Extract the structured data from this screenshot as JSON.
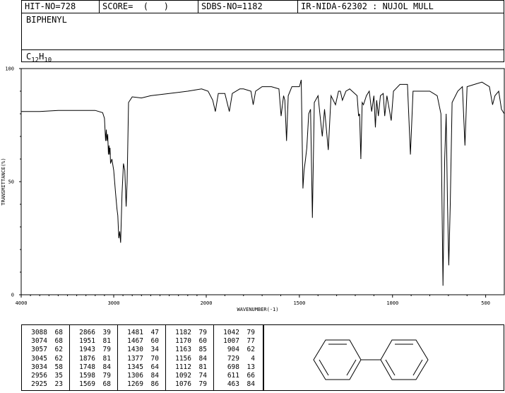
{
  "header": {
    "hit_no": "HIT-NO=728",
    "score": "SCORE=  (   )",
    "sdbs_no": "SDBS-NO=1182",
    "ir_id": "IR-NIDA-62302 : NUJOL MULL",
    "compound_name": "BIPHENYL",
    "formula": {
      "c": "C",
      "c_count": "12",
      "h": "H",
      "h_count": "10"
    }
  },
  "chart_data": {
    "type": "line",
    "xlabel": "WAVENUMBER(-1)",
    "ylabel": "TRANSMITTANCE(%)",
    "xlim": [
      4000,
      400
    ],
    "ylim": [
      0,
      100
    ],
    "x_ticks": [
      "4000",
      "3000",
      "2000",
      "1500",
      "1000",
      "500"
    ],
    "y_ticks": [
      "0",
      "50",
      "100"
    ],
    "series": [
      {
        "points": [
          [
            4000,
            81
          ],
          [
            3800,
            81
          ],
          [
            3600,
            81.5
          ],
          [
            3400,
            81.5
          ],
          [
            3200,
            81.5
          ],
          [
            3120,
            80.5
          ],
          [
            3100,
            78
          ],
          [
            3088,
            68
          ],
          [
            3080,
            73
          ],
          [
            3074,
            68
          ],
          [
            3065,
            71
          ],
          [
            3057,
            62
          ],
          [
            3050,
            66
          ],
          [
            3045,
            62
          ],
          [
            3040,
            65
          ],
          [
            3034,
            58
          ],
          [
            3020,
            60
          ],
          [
            3000,
            55
          ],
          [
            2980,
            45
          ],
          [
            2965,
            38
          ],
          [
            2956,
            35
          ],
          [
            2945,
            25
          ],
          [
            2935,
            28
          ],
          [
            2925,
            23
          ],
          [
            2910,
            45
          ],
          [
            2895,
            58
          ],
          [
            2880,
            55
          ],
          [
            2866,
            39
          ],
          [
            2855,
            50
          ],
          [
            2840,
            85
          ],
          [
            2800,
            87.5
          ],
          [
            2700,
            87
          ],
          [
            2600,
            88
          ],
          [
            2400,
            89
          ],
          [
            2200,
            90
          ],
          [
            2050,
            91
          ],
          [
            1990,
            90
          ],
          [
            1965,
            86
          ],
          [
            1951,
            81
          ],
          [
            1935,
            89
          ],
          [
            1900,
            89
          ],
          [
            1876,
            81
          ],
          [
            1860,
            89
          ],
          [
            1820,
            91
          ],
          [
            1800,
            91
          ],
          [
            1760,
            90
          ],
          [
            1748,
            84
          ],
          [
            1735,
            90
          ],
          [
            1700,
            92
          ],
          [
            1650,
            92
          ],
          [
            1610,
            91
          ],
          [
            1598,
            79
          ],
          [
            1585,
            88
          ],
          [
            1578,
            86
          ],
          [
            1569,
            68
          ],
          [
            1560,
            88
          ],
          [
            1540,
            92
          ],
          [
            1520,
            92
          ],
          [
            1500,
            92
          ],
          [
            1490,
            95
          ],
          [
            1481,
            47
          ],
          [
            1475,
            55
          ],
          [
            1467,
            60
          ],
          [
            1460,
            65
          ],
          [
            1450,
            80
          ],
          [
            1440,
            82
          ],
          [
            1430,
            34
          ],
          [
            1420,
            85
          ],
          [
            1400,
            88
          ],
          [
            1390,
            80
          ],
          [
            1377,
            70
          ],
          [
            1365,
            82
          ],
          [
            1345,
            64
          ],
          [
            1330,
            88
          ],
          [
            1306,
            84
          ],
          [
            1290,
            90
          ],
          [
            1280,
            90
          ],
          [
            1269,
            86
          ],
          [
            1250,
            90
          ],
          [
            1230,
            91
          ],
          [
            1190,
            88
          ],
          [
            1182,
            79
          ],
          [
            1177,
            80
          ],
          [
            1170,
            60
          ],
          [
            1163,
            85
          ],
          [
            1156,
            84
          ],
          [
            1140,
            88
          ],
          [
            1125,
            90
          ],
          [
            1112,
            81
          ],
          [
            1100,
            88
          ],
          [
            1092,
            74
          ],
          [
            1085,
            86
          ],
          [
            1076,
            79
          ],
          [
            1065,
            88
          ],
          [
            1050,
            89
          ],
          [
            1042,
            79
          ],
          [
            1030,
            88
          ],
          [
            1007,
            77
          ],
          [
            995,
            90
          ],
          [
            960,
            93
          ],
          [
            920,
            93
          ],
          [
            904,
            62
          ],
          [
            890,
            90
          ],
          [
            850,
            90
          ],
          [
            800,
            90
          ],
          [
            760,
            88
          ],
          [
            740,
            80
          ],
          [
            729,
            4
          ],
          [
            720,
            60
          ],
          [
            712,
            80
          ],
          [
            705,
            40
          ],
          [
            698,
            13
          ],
          [
            690,
            40
          ],
          [
            680,
            85
          ],
          [
            650,
            90
          ],
          [
            625,
            92
          ],
          [
            611,
            66
          ],
          [
            600,
            92
          ],
          [
            560,
            93
          ],
          [
            520,
            94
          ],
          [
            500,
            93
          ],
          [
            480,
            92
          ],
          [
            463,
            84
          ],
          [
            450,
            88
          ],
          [
            430,
            90
          ],
          [
            415,
            82
          ],
          [
            400,
            80
          ]
        ]
      }
    ]
  },
  "peak_table": [
    [
      [
        "3088",
        "68"
      ],
      [
        "3074",
        "68"
      ],
      [
        "3057",
        "62"
      ],
      [
        "3045",
        "62"
      ],
      [
        "3034",
        "58"
      ],
      [
        "2956",
        "35"
      ],
      [
        "2925",
        "23"
      ]
    ],
    [
      [
        "2866",
        "39"
      ],
      [
        "1951",
        "81"
      ],
      [
        "1943",
        "79"
      ],
      [
        "1876",
        "81"
      ],
      [
        "1748",
        "84"
      ],
      [
        "1598",
        "79"
      ],
      [
        "1569",
        "68"
      ]
    ],
    [
      [
        "1481",
        "47"
      ],
      [
        "1467",
        "60"
      ],
      [
        "1430",
        "34"
      ],
      [
        "1377",
        "70"
      ],
      [
        "1345",
        "64"
      ],
      [
        "1306",
        "84"
      ],
      [
        "1269",
        "86"
      ]
    ],
    [
      [
        "1182",
        "79"
      ],
      [
        "1170",
        "60"
      ],
      [
        "1163",
        "85"
      ],
      [
        "1156",
        "84"
      ],
      [
        "1112",
        "81"
      ],
      [
        "1092",
        "74"
      ],
      [
        "1076",
        "79"
      ]
    ],
    [
      [
        "1042",
        "79"
      ],
      [
        "1007",
        "77"
      ],
      [
        "904",
        "62"
      ],
      [
        "729",
        "4"
      ],
      [
        "698",
        "13"
      ],
      [
        "611",
        "66"
      ],
      [
        "463",
        "84"
      ]
    ]
  ]
}
